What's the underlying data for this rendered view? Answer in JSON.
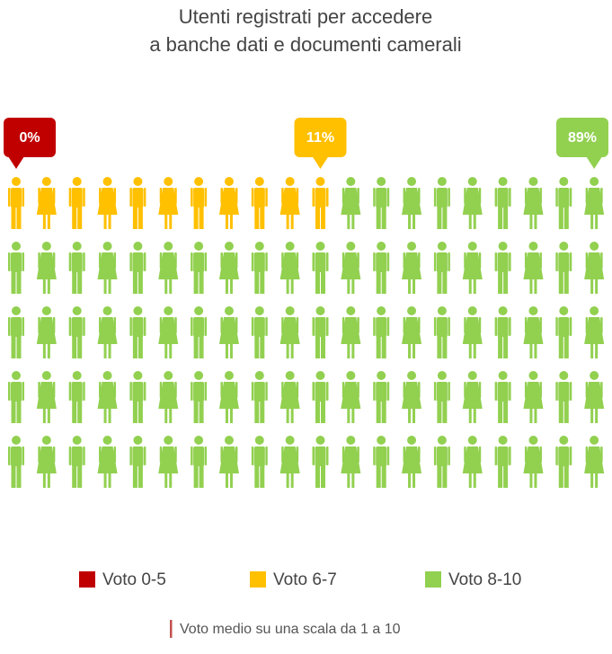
{
  "chart_data": {
    "type": "pictogram",
    "title": [
      "Utenti registrati per accedere",
      "a banche dati e documenti camerali"
    ],
    "columns": 20,
    "total": 100,
    "series": [
      {
        "name": "Voto 0-5",
        "color": "#c00000",
        "value": 0,
        "value_label": "0%"
      },
      {
        "name": "Voto 6-7",
        "color": "#ffc000",
        "value": 11,
        "value_label": "11%"
      },
      {
        "name": "Voto 8-10",
        "color": "#92d050",
        "value": 89,
        "value_label": "89%"
      }
    ],
    "note": "Voto medio su una scala da 1 a 10",
    "note_color": "#c0504d"
  }
}
